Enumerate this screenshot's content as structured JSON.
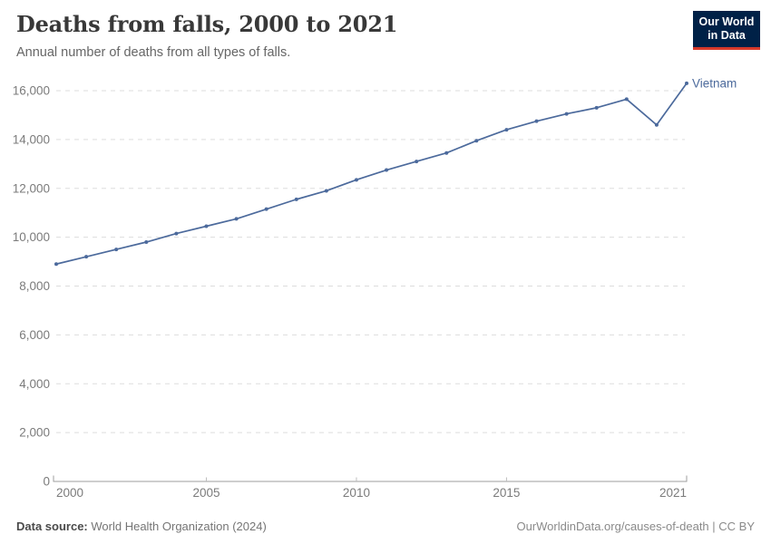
{
  "header": {
    "title": "Deaths from falls, 2000 to 2021",
    "subtitle": "Annual number of deaths from all types of falls.",
    "logo": {
      "line1": "Our World",
      "line2": "in Data"
    }
  },
  "chart_data": {
    "type": "line",
    "title": "Deaths from falls, 2000 to 2021",
    "xlabel": "",
    "ylabel": "",
    "xlim": [
      2000,
      2021
    ],
    "ylim": [
      0,
      16000
    ],
    "x_ticks": [
      2000,
      2005,
      2010,
      2015,
      2021
    ],
    "y_ticks": [
      0,
      2000,
      4000,
      6000,
      8000,
      10000,
      12000,
      14000,
      16000
    ],
    "grid": "horizontal-dashed",
    "legend_position": "end-of-line-label",
    "series": [
      {
        "name": "Vietnam",
        "color": "#4C6A9C",
        "x": [
          2000,
          2001,
          2002,
          2003,
          2004,
          2005,
          2006,
          2007,
          2008,
          2009,
          2010,
          2011,
          2012,
          2013,
          2014,
          2015,
          2016,
          2017,
          2018,
          2019,
          2020,
          2021
        ],
        "values": [
          8900,
          9200,
          9500,
          9800,
          10150,
          10450,
          10750,
          11150,
          11550,
          11900,
          12350,
          12750,
          13100,
          13450,
          13950,
          14400,
          14750,
          15050,
          15300,
          15650,
          14600,
          16300
        ]
      }
    ]
  },
  "footer": {
    "source_label": "Data source:",
    "source_value": "World Health Organization (2024)",
    "credit": "OurWorldinData.org/causes-of-death | CC BY"
  },
  "colors": {
    "line": "#4C6A9C",
    "grid": "#dddddd",
    "axis": "#9e9e9e",
    "tick": "#bdbdbd",
    "tick_label": "#7b7b7b",
    "logo_bg": "#002147",
    "logo_accent": "#D93A2B"
  }
}
